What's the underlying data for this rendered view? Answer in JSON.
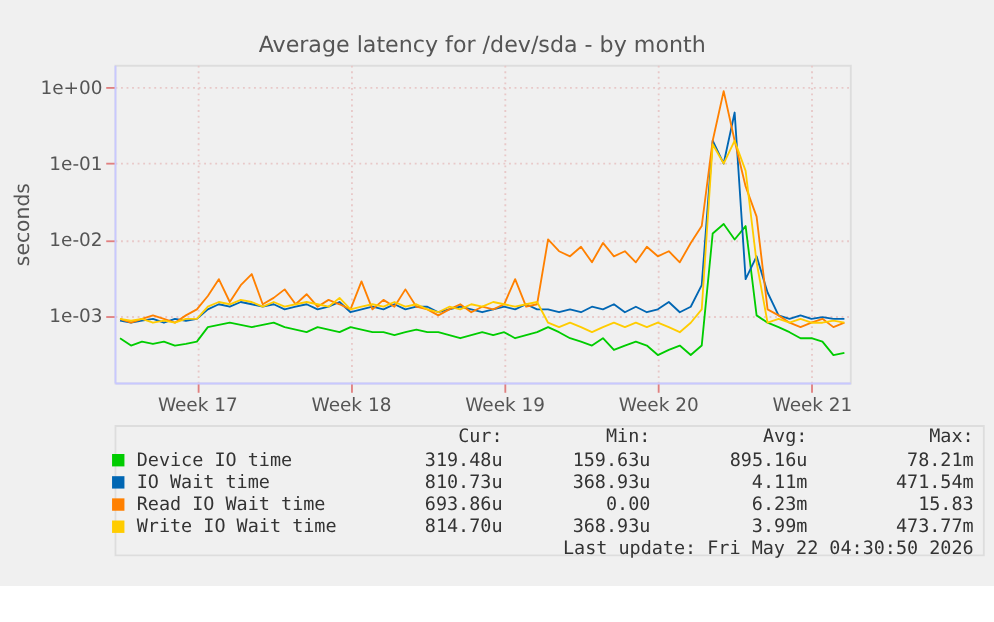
{
  "chart_data": {
    "type": "line",
    "title": "Average latency for /dev/sda - by month",
    "ylabel": "seconds",
    "categories": [
      null,
      null,
      null,
      null,
      null,
      null,
      null,
      "Week 17",
      null,
      null,
      null,
      null,
      null,
      null,
      null,
      null,
      null,
      null,
      null,
      null,
      null,
      "Week 18",
      null,
      null,
      null,
      null,
      null,
      null,
      null,
      null,
      null,
      null,
      null,
      null,
      null,
      "Week 19",
      null,
      null,
      null,
      null,
      null,
      null,
      null,
      null,
      null,
      null,
      null,
      null,
      null,
      "Week 20",
      null,
      null,
      null,
      null,
      null,
      null,
      null,
      null,
      null,
      null,
      null,
      null,
      null,
      "Week 21",
      null,
      null,
      null
    ],
    "series": [
      {
        "name": "Device IO time",
        "color": "#00cc00",
        "values": [
          0.0005,
          0.0004,
          0.00045,
          0.00042,
          0.00045,
          0.0004,
          0.00042,
          0.00045,
          0.0007,
          0.00075,
          0.0008,
          0.00075,
          0.0007,
          0.00075,
          0.0008,
          0.0007,
          0.00065,
          0.0006,
          0.0007,
          0.00065,
          0.0006,
          0.0007,
          0.00065,
          0.0006,
          0.0006,
          0.00055,
          0.0006,
          0.00065,
          0.0006,
          0.0006,
          0.00055,
          0.0005,
          0.00055,
          0.0006,
          0.00055,
          0.0006,
          0.0005,
          0.00055,
          0.0006,
          0.0007,
          0.0006,
          0.0005,
          0.00045,
          0.0004,
          0.0005,
          0.00035,
          0.0004,
          0.00045,
          0.0004,
          0.0003,
          0.00035,
          0.0004,
          0.0003,
          0.0004,
          0.012,
          0.016,
          0.01,
          0.015,
          0.001,
          0.0008,
          0.0007,
          0.0006,
          0.0005,
          0.0005,
          0.00045,
          0.0003,
          0.00032
        ]
      },
      {
        "name": "IO Wait time",
        "color": "#0066b3",
        "values": [
          0.00085,
          0.0008,
          0.00085,
          0.0009,
          0.0008,
          0.0009,
          0.00085,
          0.0009,
          0.0012,
          0.0014,
          0.0013,
          0.0015,
          0.0014,
          0.0013,
          0.0014,
          0.0012,
          0.0013,
          0.0014,
          0.0012,
          0.0013,
          0.0015,
          0.0011,
          0.0012,
          0.0013,
          0.0012,
          0.0014,
          0.0012,
          0.0013,
          0.0013,
          0.0011,
          0.0012,
          0.0013,
          0.0012,
          0.0011,
          0.0012,
          0.0013,
          0.0012,
          0.0014,
          0.0012,
          0.0012,
          0.0011,
          0.0012,
          0.0011,
          0.0013,
          0.0012,
          0.0014,
          0.0011,
          0.0013,
          0.0011,
          0.0012,
          0.0015,
          0.0011,
          0.0013,
          0.0025,
          0.2,
          0.1,
          0.47,
          0.003,
          0.006,
          0.002,
          0.001,
          0.0009,
          0.001,
          0.0009,
          0.00095,
          0.0009,
          0.0009
        ]
      },
      {
        "name": "Read IO Wait time",
        "color": "#ff8000",
        "values": [
          0.0009,
          0.0008,
          0.0009,
          0.001,
          0.0009,
          0.0008,
          0.001,
          0.0012,
          0.0018,
          0.003,
          0.0015,
          0.0025,
          0.0035,
          0.0014,
          0.0017,
          0.0022,
          0.0014,
          0.0019,
          0.0013,
          0.0016,
          0.0014,
          0.0012,
          0.0028,
          0.0012,
          0.0016,
          0.0013,
          0.0022,
          0.0013,
          0.0012,
          0.001,
          0.0012,
          0.0014,
          0.0011,
          0.0013,
          0.0012,
          0.0014,
          0.003,
          0.0013,
          0.0014,
          0.01,
          0.007,
          0.006,
          0.008,
          0.005,
          0.009,
          0.006,
          0.007,
          0.005,
          0.008,
          0.006,
          0.007,
          0.005,
          0.009,
          0.015,
          0.2,
          0.9,
          0.2,
          0.05,
          0.02,
          0.0012,
          0.001,
          0.0008,
          0.0007,
          0.0008,
          0.0009,
          0.0007,
          0.0008
        ]
      },
      {
        "name": "Write IO Wait time",
        "color": "#ffcc00",
        "values": [
          0.0009,
          0.00085,
          0.0009,
          0.0008,
          0.00085,
          0.0008,
          0.0009,
          0.0009,
          0.0013,
          0.0015,
          0.0014,
          0.0016,
          0.0015,
          0.0013,
          0.0015,
          0.0013,
          0.0014,
          0.0015,
          0.0014,
          0.0013,
          0.0017,
          0.0012,
          0.0013,
          0.0014,
          0.0013,
          0.0015,
          0.0013,
          0.0014,
          0.0012,
          0.0011,
          0.0013,
          0.0012,
          0.0014,
          0.0013,
          0.0015,
          0.0014,
          0.0013,
          0.0014,
          0.0015,
          0.0008,
          0.0007,
          0.0008,
          0.0007,
          0.0006,
          0.0007,
          0.0008,
          0.0007,
          0.0008,
          0.0007,
          0.0008,
          0.0007,
          0.0006,
          0.0008,
          0.0012,
          0.18,
          0.1,
          0.2,
          0.08,
          0.005,
          0.0008,
          0.0009,
          0.0008,
          0.0009,
          0.0008,
          0.0008,
          0.00085,
          0.0008
        ]
      }
    ],
    "log": "y",
    "ylim": [
      0.00013,
      2
    ],
    "yticks": [
      {
        "value": 0.001,
        "label": "1e-03"
      },
      {
        "value": 0.01,
        "label": "1e-02"
      },
      {
        "value": 0.1,
        "label": "1e-01"
      },
      {
        "value": 1,
        "label": "1e+00"
      }
    ],
    "grid": true,
    "legend": "bottom",
    "marker": "none",
    "line_style": "solid",
    "annotations": [
      "Cur:",
      "Min:",
      "Avg:",
      "Max:",
      "319.48u",
      "159.63u",
      "895.16u",
      "78.21m",
      "810.73u",
      "368.93u",
      "4.11m",
      "471.54m",
      "693.86u",
      "0.00",
      "6.23m",
      "15.83",
      "814.70u",
      "368.93u",
      "3.99m",
      "473.77m",
      "Last update: Fri May 22 04:30:50 2026"
    ]
  }
}
